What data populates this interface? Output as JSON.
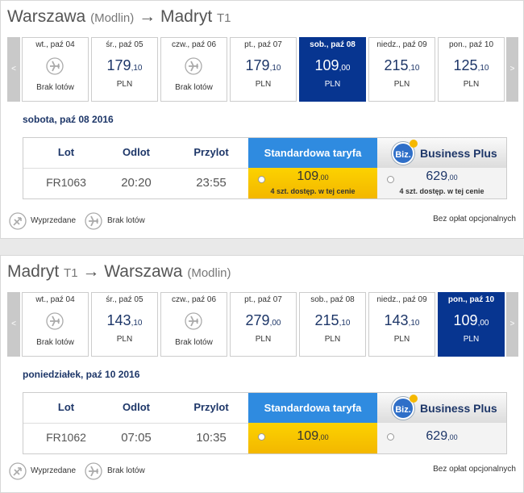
{
  "sections": [
    {
      "title": {
        "from": "Warszawa",
        "from_note": "(Modlin)",
        "arrow": "→",
        "to": "Madryt",
        "to_note": "T1"
      },
      "nav": {
        "prev": "<",
        "next": ">"
      },
      "days": [
        {
          "label": "wt., paź 04",
          "status": "Brak lotów"
        },
        {
          "label": "śr., paź 05",
          "price": "179",
          "cents": ",10",
          "currency": "PLN"
        },
        {
          "label": "czw., paź 06",
          "status": "Brak lotów"
        },
        {
          "label": "pt., paź 07",
          "price": "179",
          "cents": ",10",
          "currency": "PLN"
        },
        {
          "label": "sob., paź 08",
          "price": "109",
          "cents": ",00",
          "currency": "PLN",
          "selected": true
        },
        {
          "label": "niedz., paź 09",
          "price": "215",
          "cents": ",10",
          "currency": "PLN"
        },
        {
          "label": "pon., paź 10",
          "price": "125",
          "cents": ",10",
          "currency": "PLN"
        }
      ],
      "date": "sobota, paź 08 2016",
      "table": {
        "headers": {
          "flight": "Lot",
          "dep": "Odlot",
          "arr": "Przylot",
          "standard": "Standardowa taryfa",
          "biz_logo": "Biz.",
          "business": "Business Plus"
        },
        "row": {
          "flight": "FR1063",
          "dep": "20:20",
          "arr": "23:55",
          "standard": {
            "price": "109",
            "cents": ",00",
            "note": "4 szt. dostęp. w tej cenie"
          },
          "business": {
            "price": "629",
            "cents": ",00",
            "note": "4 szt. dostęp. w tej cenie"
          }
        }
      },
      "legend": {
        "sold": "Wyprzedane",
        "none": "Brak lotów",
        "fees": "Bez opłat opcjonalnych"
      }
    },
    {
      "title": {
        "from": "Madryt",
        "from_note": "T1",
        "arrow": "→",
        "to": "Warszawa",
        "to_note": "(Modlin)"
      },
      "nav": {
        "prev": "<",
        "next": ">"
      },
      "days": [
        {
          "label": "wt., paź 04",
          "status": "Brak lotów"
        },
        {
          "label": "śr., paź 05",
          "price": "143",
          "cents": ",10",
          "currency": "PLN"
        },
        {
          "label": "czw., paź 06",
          "status": "Brak lotów"
        },
        {
          "label": "pt., paź 07",
          "price": "279",
          "cents": ",00",
          "currency": "PLN"
        },
        {
          "label": "sob., paź 08",
          "price": "215",
          "cents": ",10",
          "currency": "PLN"
        },
        {
          "label": "niedz., paź 09",
          "price": "143",
          "cents": ",10",
          "currency": "PLN"
        },
        {
          "label": "pon., paź 10",
          "price": "109",
          "cents": ",00",
          "currency": "PLN",
          "selected": true
        }
      ],
      "date": "poniedziałek, paź 10 2016",
      "table": {
        "headers": {
          "flight": "Lot",
          "dep": "Odlot",
          "arr": "Przylot",
          "standard": "Standardowa taryfa",
          "biz_logo": "Biz.",
          "business": "Business Plus"
        },
        "row": {
          "flight": "FR1062",
          "dep": "07:05",
          "arr": "10:35",
          "standard": {
            "price": "109",
            "cents": ",00"
          },
          "business": {
            "price": "629",
            "cents": ",00"
          }
        }
      },
      "legend": {
        "sold": "Wyprzedane",
        "none": "Brak lotów",
        "fees": "Bez opłat opcjonalnych"
      }
    }
  ]
}
